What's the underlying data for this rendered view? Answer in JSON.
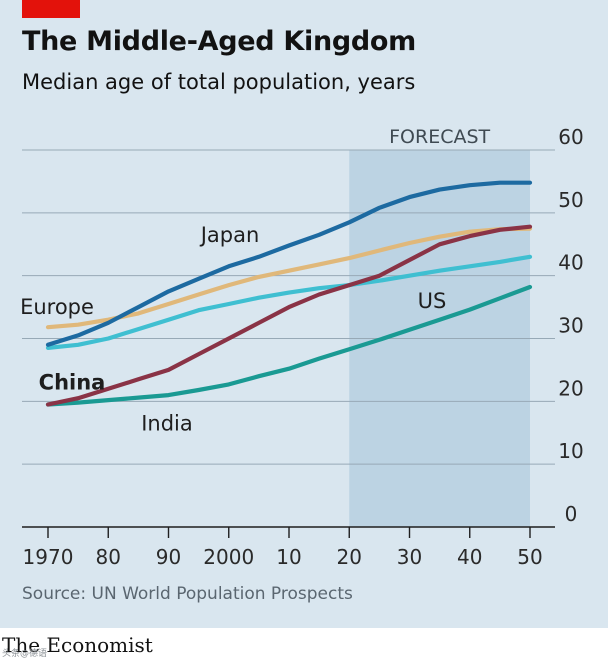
{
  "header": {
    "title": "The Middle-Aged Kingdom",
    "subtitle": "Median age of total population, years"
  },
  "footer": {
    "source": "Source: UN World Population Prospects",
    "brand": "The Economist",
    "watermark": "头条@德语"
  },
  "colors": {
    "background": "#d9e6ef",
    "forecast_band": "#bcd3e3",
    "accent_red": "#e3120b",
    "Japan": "#1d6aa1",
    "Europe": "#e0b87a",
    "US": "#3fbfd1",
    "China": "#8a3346",
    "India": "#1a9a93"
  },
  "chart_data": {
    "type": "line",
    "title": "The Middle-Aged Kingdom",
    "subtitle": "Median age of total population, years",
    "ylim": [
      0,
      60
    ],
    "yticks": [
      "0",
      "10",
      "20",
      "30",
      "40",
      "50",
      "60"
    ],
    "xticks": [
      "1970",
      "80",
      "90",
      "2000",
      "10",
      "20",
      "30",
      "40",
      "50"
    ],
    "xtick_years": [
      1970,
      1980,
      1990,
      2000,
      2010,
      2020,
      2030,
      2040,
      2050
    ],
    "grid": "horizontal",
    "forecast": {
      "label": "FORECAST",
      "from": 2020,
      "to": 2050
    },
    "x": [
      1970,
      1975,
      1980,
      1985,
      1990,
      1995,
      2000,
      2005,
      2010,
      2015,
      2020,
      2025,
      2030,
      2035,
      2040,
      2045,
      2050
    ],
    "series": [
      {
        "name": "Japan",
        "values": [
          29.0,
          30.5,
          32.5,
          35.0,
          37.5,
          39.5,
          41.5,
          43.0,
          44.8,
          46.5,
          48.5,
          50.8,
          52.5,
          53.7,
          54.4,
          54.8,
          54.8
        ]
      },
      {
        "name": "Europe",
        "values": [
          31.8,
          32.2,
          33.0,
          34.0,
          35.5,
          37.0,
          38.5,
          39.8,
          40.8,
          41.8,
          42.8,
          44.0,
          45.2,
          46.2,
          47.0,
          47.4,
          47.5
        ]
      },
      {
        "name": "US",
        "values": [
          28.5,
          29.0,
          30.0,
          31.5,
          33.0,
          34.5,
          35.5,
          36.5,
          37.3,
          38.0,
          38.5,
          39.2,
          40.0,
          40.8,
          41.5,
          42.2,
          43.0
        ]
      },
      {
        "name": "China",
        "values": [
          19.5,
          20.5,
          22.0,
          23.5,
          25.0,
          27.5,
          30.0,
          32.5,
          35.0,
          37.0,
          38.5,
          40.0,
          42.5,
          45.0,
          46.3,
          47.3,
          47.8
        ]
      },
      {
        "name": "India",
        "values": [
          19.5,
          19.8,
          20.2,
          20.6,
          21.0,
          21.8,
          22.7,
          24.0,
          25.2,
          26.8,
          28.3,
          29.8,
          31.4,
          33.0,
          34.6,
          36.4,
          38.2
        ]
      }
    ],
    "labels": [
      "Japan",
      "Europe",
      "US",
      "China",
      "India"
    ]
  }
}
